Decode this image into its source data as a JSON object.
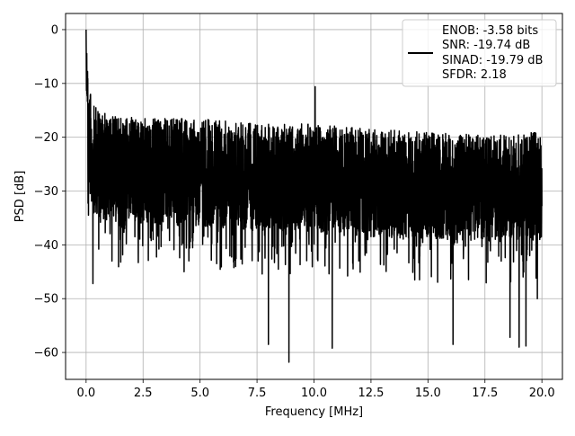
{
  "chart_data": {
    "type": "line",
    "title": "",
    "xlabel": "Frequency [MHz]",
    "ylabel": "PSD [dB]",
    "xlim": [
      -0.9,
      20.9
    ],
    "ylim": [
      -65,
      3
    ],
    "xticks": [
      0.0,
      2.5,
      5.0,
      7.5,
      10.0,
      12.5,
      15.0,
      17.5,
      20.0
    ],
    "xtick_labels": [
      "0.0",
      "2.5",
      "5.0",
      "7.5",
      "10.0",
      "12.5",
      "15.0",
      "17.5",
      "20.0"
    ],
    "yticks": [
      0,
      -10,
      -20,
      -30,
      -40,
      -50,
      -60
    ],
    "ytick_labels": [
      "0",
      "−10",
      "−20",
      "−30",
      "−40",
      "−50",
      "−60"
    ],
    "grid": true,
    "legend_position": "top-right",
    "legend_lines": [
      "ENOB: -3.58 bits",
      "SNR: -19.74 dB",
      "SINAD: -19.79 dB",
      "SFDR: 2.18"
    ],
    "series": [
      {
        "color": "#000000",
        "description_points": {
          "x_start": 0.0,
          "x_end": 20.0,
          "peak": [
            0.0,
            0.0
          ],
          "spur": [
            10.05,
            -10.6
          ],
          "noise_upper_envelope": [
            [
              0.0,
              0.0
            ],
            [
              0.1,
              -9.0
            ],
            [
              0.3,
              -13.0
            ],
            [
              1.0,
              -15.0
            ],
            [
              2.5,
              -15.5
            ],
            [
              5.0,
              -15.5
            ],
            [
              7.5,
              -16.5
            ],
            [
              10.0,
              -16.5
            ],
            [
              12.5,
              -17.5
            ],
            [
              15.0,
              -18.0
            ],
            [
              17.5,
              -18.5
            ],
            [
              20.0,
              -18.0
            ]
          ],
          "noise_lower_dips": [
            [
              0.3,
              -47.2
            ],
            [
              4.3,
              -45.0
            ],
            [
              8.0,
              -58.5
            ],
            [
              8.9,
              -61.8
            ],
            [
              10.8,
              -59.2
            ],
            [
              16.1,
              -58.5
            ],
            [
              18.6,
              -57.2
            ],
            [
              19.0,
              -59.0
            ],
            [
              19.3,
              -58.8
            ],
            [
              19.8,
              -50.0
            ]
          ]
        }
      }
    ]
  }
}
